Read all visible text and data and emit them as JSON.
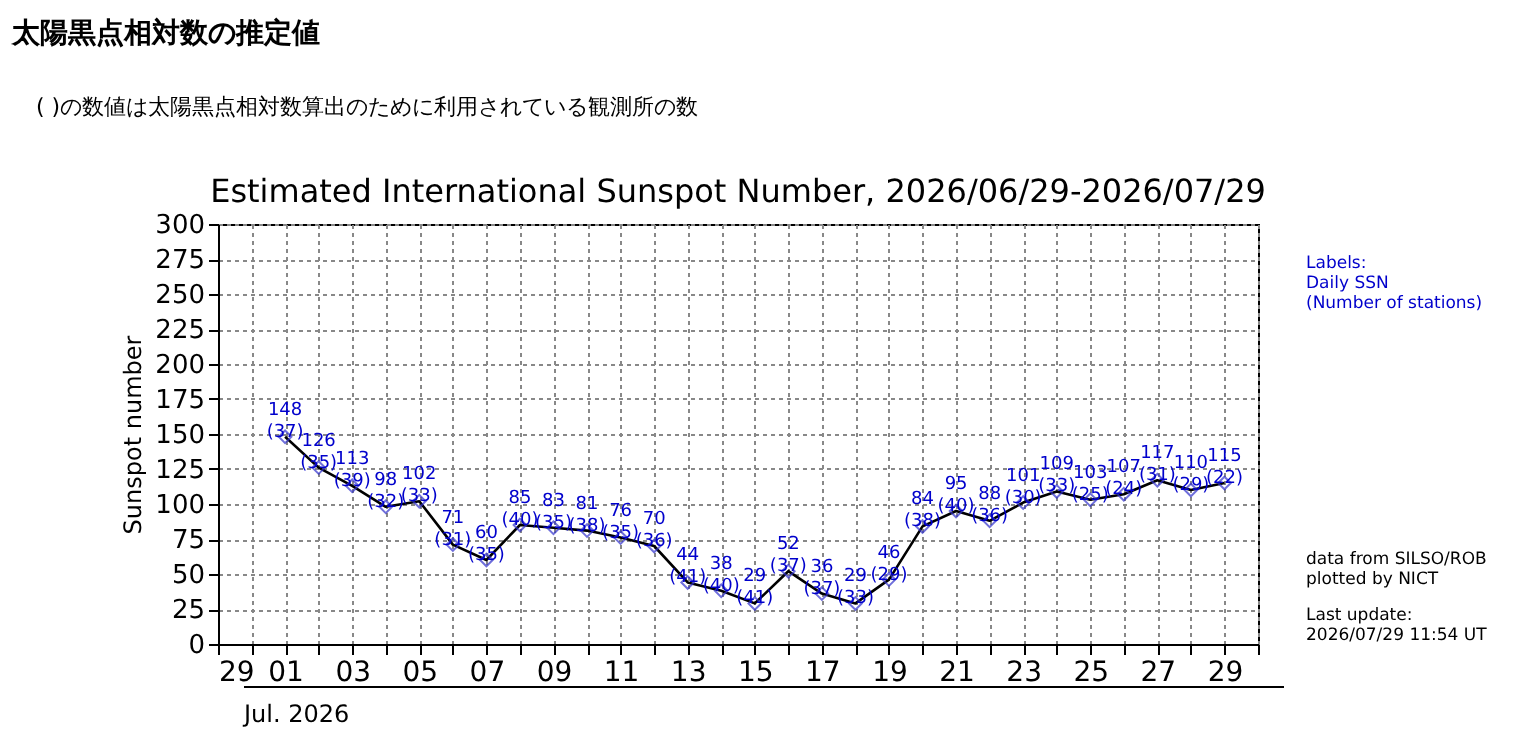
{
  "chart_data": {
    "type": "line",
    "title": "Estimated International Sunspot Number, 2026/06/29-2026/07/29",
    "xlabel": "Jul. 2026",
    "ylabel": "Sunspot number",
    "annotations": [
      "太陽黒点相対数の推定値",
      "( )の数値は太陽黒点相対数算出のために利用されている観測所の数",
      "Labels:\nDaily SSN\n(Number of stations)",
      "data from SILSO/ROB\nplotted by NICT",
      "Last update:\n2026/07/29 11:54 UT"
    ],
    "x": [
      "2026-07-01",
      "2026-07-02",
      "2026-07-03",
      "2026-07-04",
      "2026-07-05",
      "2026-07-06",
      "2026-07-07",
      "2026-07-08",
      "2026-07-09",
      "2026-07-10",
      "2026-07-11",
      "2026-07-12",
      "2026-07-13",
      "2026-07-14",
      "2026-07-15",
      "2026-07-16",
      "2026-07-17",
      "2026-07-18",
      "2026-07-19",
      "2026-07-20",
      "2026-07-21",
      "2026-07-22",
      "2026-07-23",
      "2026-07-24",
      "2026-07-25",
      "2026-07-26",
      "2026-07-27",
      "2026-07-28",
      "2026-07-29"
    ],
    "series": [
      {
        "color": "#000000",
        "values": [
          148,
          126,
          113,
          98,
          102,
          71,
          60,
          85,
          83,
          81,
          76,
          70,
          44,
          38,
          29,
          52,
          36,
          29,
          46,
          84,
          95,
          88,
          101,
          109,
          103,
          107,
          117,
          110,
          115
        ],
        "value_labels": [
          "148\n(37)",
          "126\n(35)",
          "113\n(39)",
          "98\n(32)",
          "102\n(33)",
          "71\n(31)",
          "60\n(35)",
          "85\n(40)",
          "83\n(35)",
          "81\n(38)",
          "76\n(35)",
          "70\n(36)",
          "44\n(41)",
          "38\n(40)",
          "29\n(41)",
          "52\n(37)",
          "36\n(37)",
          "29\n(33)",
          "46\n(29)",
          "84\n(38)",
          "95\n(40)",
          "88\n(36)",
          "101\n(30)",
          "109\n(33)",
          "103\n(25)",
          "107\n(24)",
          "117\n(31)",
          "110\n(29)",
          "115\n(22)"
        ]
      }
    ],
    "xlim": [
      "2026-06-29",
      "2026-07-30"
    ],
    "xticks": [
      {
        "value": "2026-06-29",
        "label": "29"
      },
      {
        "value": "2026-06-30",
        "label": null
      },
      {
        "value": "2026-07-01",
        "label": "01"
      },
      {
        "value": "2026-07-02",
        "label": null
      },
      {
        "value": "2026-07-03",
        "label": "03"
      },
      {
        "value": "2026-07-04",
        "label": null
      },
      {
        "value": "2026-07-05",
        "label": "05"
      },
      {
        "value": "2026-07-06",
        "label": null
      },
      {
        "value": "2026-07-07",
        "label": "07"
      },
      {
        "value": "2026-07-08",
        "label": null
      },
      {
        "value": "2026-07-09",
        "label": "09"
      },
      {
        "value": "2026-07-10",
        "label": null
      },
      {
        "value": "2026-07-11",
        "label": "11"
      },
      {
        "value": "2026-07-12",
        "label": null
      },
      {
        "value": "2026-07-13",
        "label": "13"
      },
      {
        "value": "2026-07-14",
        "label": null
      },
      {
        "value": "2026-07-15",
        "label": "15"
      },
      {
        "value": "2026-07-16",
        "label": null
      },
      {
        "value": "2026-07-17",
        "label": "17"
      },
      {
        "value": "2026-07-18",
        "label": null
      },
      {
        "value": "2026-07-19",
        "label": "19"
      },
      {
        "value": "2026-07-20",
        "label": null
      },
      {
        "value": "2026-07-21",
        "label": "21"
      },
      {
        "value": "2026-07-22",
        "label": null
      },
      {
        "value": "2026-07-23",
        "label": "23"
      },
      {
        "value": "2026-07-24",
        "label": null
      },
      {
        "value": "2026-07-25",
        "label": "25"
      },
      {
        "value": "2026-07-26",
        "label": null
      },
      {
        "value": "2026-07-27",
        "label": "27"
      },
      {
        "value": "2026-07-28",
        "label": null
      },
      {
        "value": "2026-07-29",
        "label": "29"
      },
      {
        "value": "2026-07-30",
        "label": null
      }
    ],
    "ylim": [
      0,
      300
    ],
    "yticks": [
      0,
      25,
      50,
      75,
      100,
      125,
      150,
      175,
      200,
      225,
      250,
      275,
      300
    ],
    "grid": true,
    "legend": false,
    "marker": "diamond",
    "line_style": "solid"
  }
}
